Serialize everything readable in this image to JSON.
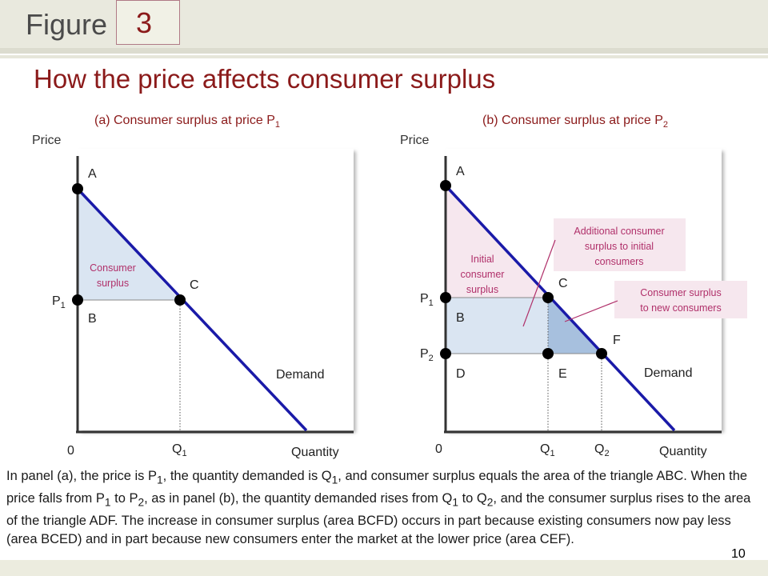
{
  "figure": {
    "label": "Figure",
    "number": "3"
  },
  "title": "How the price affects consumer surplus",
  "panel_a": {
    "title": "(a) Consumer surplus at price P",
    "title_sub": "1",
    "y_axis_label": "Price",
    "x_axis_label": "Quantity",
    "origin": "0",
    "price_label": "P",
    "price_sub": "1",
    "quantity_label": "Q",
    "quantity_sub": "1",
    "point_a": "A",
    "point_b": "B",
    "point_c": "C",
    "demand_label": "Demand",
    "surplus_line1": "Consumer",
    "surplus_line2": "surplus"
  },
  "panel_b": {
    "title": "(b) Consumer surplus at price P",
    "title_sub": "2",
    "y_axis_label": "Price",
    "x_axis_label": "Quantity",
    "origin": "0",
    "p1_label": "P",
    "p1_sub": "1",
    "p2_label": "P",
    "p2_sub": "2",
    "q1_label": "Q",
    "q1_sub": "1",
    "q2_label": "Q",
    "q2_sub": "2",
    "point_a": "A",
    "point_b": "B",
    "point_c": "C",
    "point_d": "D",
    "point_e": "E",
    "point_f": "F",
    "demand_label": "Demand",
    "initial_line1": "Initial",
    "initial_line2": "consumer",
    "initial_line3": "surplus",
    "additional_line1": "Additional consumer",
    "additional_line2": "surplus to initial",
    "additional_line3": "consumers",
    "new_line1": "Consumer surplus",
    "new_line2": "to new consumers"
  },
  "caption": {
    "s1": "In panel (a), the price is P",
    "s1_sub": "1",
    "s2": ", the quantity demanded is Q",
    "s2_sub": "1",
    "s3": ", and consumer surplus equals the area of the triangle ABC. When the price falls from P",
    "s3_sub": "1",
    "s4": " to P",
    "s4_sub": "2",
    "s5": ", as in panel (b), the quantity demanded rises from Q",
    "s5_sub": "1",
    "s6": " to Q",
    "s6_sub": "2",
    "s7": ", and the consumer surplus rises to the area of the triangle ADF. The increase in consumer surplus (area BCFD) occurs in part because existing consumers now pay less (area BCED) and in part because new consumers enter the market at the lower price (area CEF)."
  },
  "page_number": "10",
  "colors": {
    "demand": "#1a1aa8",
    "title": "#8b1a1a",
    "annotation": "#b0306a",
    "surplus_fill": "#dae5f2",
    "new_surplus_fill": "#a7c0de",
    "initial_fill": "#f6e7ee",
    "callout_fill": "#f6e7ee"
  }
}
